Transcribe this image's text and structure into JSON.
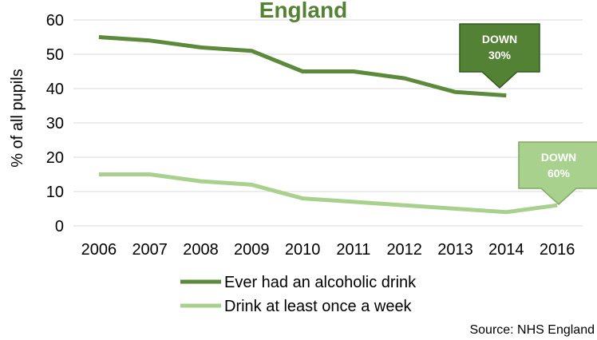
{
  "chart_data": {
    "type": "line",
    "title": "England",
    "ylabel": "% of all pupils",
    "xlabel": "",
    "categories": [
      "2006",
      "2007",
      "2008",
      "2009",
      "2010",
      "2011",
      "2012",
      "2013",
      "2014",
      "2016"
    ],
    "ylim": [
      0,
      60
    ],
    "yticks": [
      0,
      10,
      20,
      30,
      40,
      50,
      60
    ],
    "grid": true,
    "legend_position": "bottom",
    "series": [
      {
        "name": "Ever had an alcoholic drink",
        "color": "#5a8a3a",
        "values": [
          55,
          54,
          52,
          51,
          45,
          45,
          43,
          39,
          38,
          null
        ]
      },
      {
        "name": "Drink at least once a week",
        "color": "#a9d18e",
        "values": [
          15,
          15,
          13,
          12,
          8,
          7,
          6,
          5,
          4,
          6
        ]
      }
    ],
    "annotations": [
      {
        "line1": "DOWN",
        "line2": "30%",
        "series": 0,
        "color": "#548235"
      },
      {
        "line1": "DOWN",
        "line2": "60%",
        "series": 1,
        "color": "#a9d18e"
      }
    ],
    "source": "Source: NHS England",
    "title_color": "#548235"
  }
}
